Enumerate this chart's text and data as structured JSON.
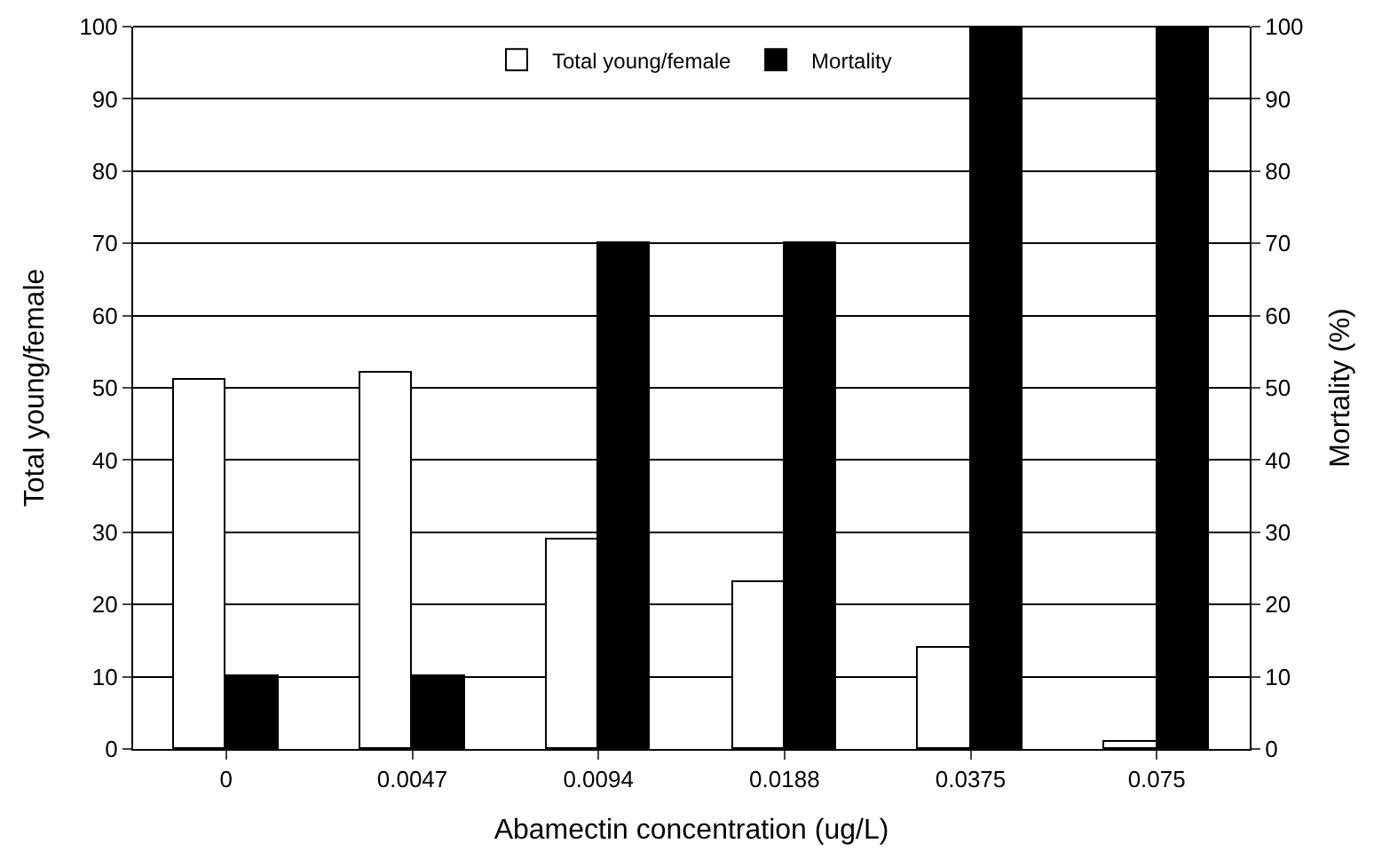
{
  "chart_data": {
    "type": "bar",
    "xlabel": "Abamectin concentration (ug/L)",
    "ylabel": "Total young/female",
    "y2label": "Mortality (%)",
    "categories": [
      "0",
      "0.0047",
      "0.0094",
      "0.0188",
      "0.0375",
      "0.075"
    ],
    "series": [
      {
        "name": "Total young/female",
        "color": "#ffffff",
        "values": [
          51,
          52,
          29,
          23,
          14,
          1
        ]
      },
      {
        "name": "Mortality",
        "color": "#000000",
        "values": [
          10,
          10,
          70,
          70,
          100,
          100
        ],
        "axis": "y2"
      }
    ],
    "ylim": [
      0,
      100
    ],
    "yticks": [
      0,
      10,
      20,
      30,
      40,
      50,
      60,
      70,
      80,
      90,
      100
    ],
    "y2lim": [
      0,
      100
    ],
    "y2ticks": [
      0,
      10,
      20,
      30,
      40,
      50,
      60,
      70,
      80,
      90,
      100
    ],
    "grid": "y",
    "legend": "top"
  }
}
